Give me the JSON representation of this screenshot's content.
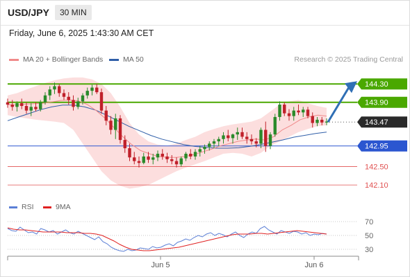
{
  "header": {
    "symbol": "USD/JPY",
    "timeframe": "30 MIN"
  },
  "date_line": "Friday, June 6, 2025 1:43:30 AM CET",
  "legend": {
    "ma20": {
      "label": "MA 20 + Bollinger Bands",
      "color": "#f08a8a"
    },
    "ma50": {
      "label": "MA 50",
      "color": "#2f5ea8"
    }
  },
  "research_credit": "Research © 2025 Trading Central",
  "rsi_legend": {
    "rsi": {
      "label": "RSI",
      "color": "#5b7fd6"
    },
    "ma9": {
      "label": "9MA",
      "color": "#e02020"
    }
  },
  "colors": {
    "up": "#2a8a2a",
    "down": "#c0202a",
    "resistance": "#4aa800",
    "support": "#2b56d0",
    "target": "#e05050",
    "arrow": "#2f6fb5",
    "band_fill": "#fbd3d3"
  },
  "chart_data": [
    {
      "type": "candlestick",
      "price_range": [
        141.83,
        144.68
      ],
      "levels": [
        {
          "value": "144.30",
          "kind": "resistance"
        },
        {
          "value": "143.90",
          "kind": "resistance"
        },
        {
          "value": "143.47",
          "kind": "last"
        },
        {
          "value": "142.95",
          "kind": "support"
        },
        {
          "value": "142.50",
          "kind": "target"
        },
        {
          "value": "142.10",
          "kind": "target"
        }
      ],
      "forecast_arrow": {
        "from": 143.47,
        "to": 144.3
      },
      "x_labels": [
        "Jun 5",
        "Jun 6"
      ],
      "candles": [
        [
          143.9,
          143.98,
          143.78,
          143.85
        ],
        [
          143.85,
          143.95,
          143.72,
          143.8
        ],
        [
          143.8,
          143.92,
          143.7,
          143.88
        ],
        [
          143.88,
          143.98,
          143.75,
          143.82
        ],
        [
          143.82,
          143.9,
          143.65,
          143.72
        ],
        [
          143.72,
          143.88,
          143.6,
          143.8
        ],
        [
          143.8,
          143.9,
          143.7,
          143.75
        ],
        [
          143.75,
          143.95,
          143.7,
          143.9
        ],
        [
          143.9,
          144.12,
          143.85,
          144.05
        ],
        [
          144.05,
          144.25,
          143.95,
          144.18
        ],
        [
          144.18,
          144.33,
          144.08,
          144.25
        ],
        [
          144.25,
          144.3,
          144.02,
          144.1
        ],
        [
          144.1,
          144.18,
          143.95,
          144.02
        ],
        [
          144.02,
          144.12,
          143.85,
          143.95
        ],
        [
          143.95,
          144.05,
          143.72,
          143.8
        ],
        [
          143.8,
          144.0,
          143.75,
          143.92
        ],
        [
          143.92,
          144.1,
          143.85,
          144.05
        ],
        [
          144.05,
          144.22,
          143.98,
          144.15
        ],
        [
          144.15,
          144.28,
          144.05,
          144.22
        ],
        [
          144.22,
          144.3,
          144.08,
          144.12
        ],
        [
          144.12,
          144.2,
          143.65,
          143.72
        ],
        [
          143.72,
          143.82,
          143.4,
          143.5
        ],
        [
          143.5,
          143.6,
          143.2,
          143.3
        ],
        [
          143.3,
          143.65,
          143.1,
          143.55
        ],
        [
          143.55,
          143.62,
          143.0,
          143.08
        ],
        [
          143.08,
          143.18,
          142.8,
          142.9
        ],
        [
          142.9,
          143.0,
          142.62,
          142.7
        ],
        [
          142.7,
          142.82,
          142.55,
          142.62
        ],
        [
          142.62,
          142.72,
          142.48,
          142.58
        ],
        [
          142.58,
          142.8,
          142.55,
          142.72
        ],
        [
          142.72,
          142.82,
          142.58,
          142.65
        ],
        [
          142.65,
          142.78,
          142.55,
          142.7
        ],
        [
          142.7,
          142.85,
          142.62,
          142.78
        ],
        [
          142.78,
          142.88,
          142.65,
          142.72
        ],
        [
          142.72,
          142.8,
          142.58,
          142.66
        ],
        [
          142.66,
          142.75,
          142.55,
          142.62
        ],
        [
          142.62,
          142.7,
          142.48,
          142.55
        ],
        [
          142.55,
          142.72,
          142.5,
          142.68
        ],
        [
          142.68,
          142.82,
          142.62,
          142.78
        ],
        [
          142.78,
          142.88,
          142.66,
          142.72
        ],
        [
          142.72,
          142.88,
          142.65,
          142.82
        ],
        [
          142.82,
          142.95,
          142.72,
          142.88
        ],
        [
          142.88,
          142.98,
          142.78,
          142.93
        ],
        [
          142.93,
          143.05,
          142.85,
          143.0
        ],
        [
          143.0,
          143.1,
          142.9,
          143.05
        ],
        [
          143.05,
          143.15,
          142.95,
          143.1
        ],
        [
          143.1,
          143.25,
          143.0,
          143.18
        ],
        [
          143.18,
          143.3,
          143.05,
          143.12
        ],
        [
          143.12,
          143.22,
          143.0,
          143.2
        ],
        [
          143.2,
          143.35,
          143.08,
          143.25
        ],
        [
          143.25,
          143.35,
          143.1,
          143.15
        ],
        [
          143.15,
          143.25,
          143.0,
          143.1
        ],
        [
          143.1,
          143.2,
          142.98,
          143.05
        ],
        [
          143.05,
          143.12,
          142.92,
          143.0
        ],
        [
          143.0,
          143.35,
          142.9,
          143.3
        ],
        [
          143.3,
          143.48,
          142.82,
          142.95
        ],
        [
          142.95,
          143.25,
          142.88,
          143.2
        ],
        [
          143.2,
          143.65,
          143.15,
          143.58
        ],
        [
          143.58,
          143.92,
          143.5,
          143.85
        ],
        [
          143.85,
          143.9,
          143.6,
          143.66
        ],
        [
          143.66,
          143.75,
          143.5,
          143.6
        ],
        [
          143.6,
          143.8,
          143.5,
          143.72
        ],
        [
          143.72,
          143.85,
          143.62,
          143.68
        ],
        [
          143.68,
          143.8,
          143.58,
          143.74
        ],
        [
          143.74,
          143.8,
          143.55,
          143.6
        ],
        [
          143.6,
          143.68,
          143.35,
          143.45
        ],
        [
          143.45,
          143.58,
          143.38,
          143.52
        ],
        [
          143.52,
          143.58,
          143.4,
          143.46
        ],
        [
          143.46,
          143.55,
          143.4,
          143.48
        ]
      ],
      "ma20": [
        143.85,
        143.84,
        143.86,
        143.87,
        143.88,
        143.91,
        143.94,
        143.95,
        143.93,
        143.85,
        143.72,
        143.55,
        143.35,
        143.15,
        142.98,
        142.85,
        142.78,
        142.72,
        142.7,
        142.7,
        142.72,
        142.76,
        142.82,
        142.88,
        142.95,
        143.0,
        143.05,
        143.08,
        143.1,
        143.08,
        143.15,
        143.3,
        143.4,
        143.52,
        143.58,
        143.62,
        143.6
      ],
      "ma50": [
        143.5,
        143.58,
        143.66,
        143.74,
        143.8,
        143.84,
        143.84,
        143.8,
        143.73,
        143.62,
        143.5,
        143.38,
        143.28,
        143.18,
        143.1,
        143.04,
        142.98,
        142.94,
        142.92,
        142.9,
        142.9,
        142.91,
        142.94,
        142.98,
        143.03,
        143.08,
        143.14,
        143.18,
        143.22,
        143.25
      ],
      "bb_upper": [
        144.05,
        144.1,
        144.18,
        144.25,
        144.32,
        144.38,
        144.42,
        144.44,
        144.44,
        144.4,
        144.3,
        144.1,
        143.8,
        143.45,
        143.2,
        143.05,
        142.98,
        142.96,
        143.0,
        143.08,
        143.15,
        143.25,
        143.32,
        143.38,
        143.42,
        143.45,
        143.48,
        143.55,
        143.7,
        143.85,
        143.92,
        143.95,
        143.88,
        143.82,
        143.78
      ],
      "bb_lower": [
        143.62,
        143.58,
        143.55,
        143.52,
        143.5,
        143.48,
        143.45,
        143.3,
        143.0,
        142.7,
        142.4,
        142.2,
        142.08,
        142.02,
        142.05,
        142.1,
        142.2,
        142.3,
        142.4,
        142.48,
        142.55,
        142.62,
        142.7,
        142.78,
        142.8,
        142.78,
        142.72,
        142.8,
        142.95,
        143.05,
        143.15,
        143.25,
        143.32,
        143.38,
        143.4
      ]
    },
    {
      "type": "line",
      "title": "RSI",
      "ylim": [
        20,
        80
      ],
      "ticks": [
        70,
        50,
        30
      ],
      "series": [
        {
          "name": "RSI",
          "values": [
            60,
            57,
            56,
            62,
            58,
            54,
            55,
            52,
            60,
            58,
            55,
            57,
            52,
            55,
            58,
            54,
            52,
            56,
            53,
            50,
            47,
            44,
            48,
            41,
            38,
            33,
            30,
            28,
            27,
            30,
            28,
            29,
            32,
            31,
            30,
            34,
            32,
            33,
            36,
            38,
            35,
            40,
            42,
            45,
            43,
            47,
            50,
            48,
            52,
            54,
            50,
            53,
            51,
            48,
            52,
            55,
            50,
            47,
            52,
            55,
            53,
            60,
            63,
            58,
            55,
            52,
            57,
            55,
            53,
            56,
            55,
            52,
            54,
            50,
            52,
            51,
            53,
            52
          ]
        },
        {
          "name": "9MA",
          "values": [
            61,
            59,
            58,
            58,
            57,
            56,
            55,
            55,
            55,
            55,
            54,
            54,
            54,
            53,
            53,
            52,
            50,
            46,
            42,
            37,
            33,
            30,
            29,
            28,
            28,
            29,
            30,
            31,
            32,
            33,
            35,
            37,
            39,
            41,
            43,
            45,
            47,
            49,
            51,
            52,
            52,
            52,
            53,
            53,
            52,
            53,
            54,
            55,
            56,
            57,
            56,
            55,
            54,
            53,
            52
          ]
        }
      ],
      "x_labels": [
        "Jun 5",
        "Jun 6"
      ]
    }
  ]
}
